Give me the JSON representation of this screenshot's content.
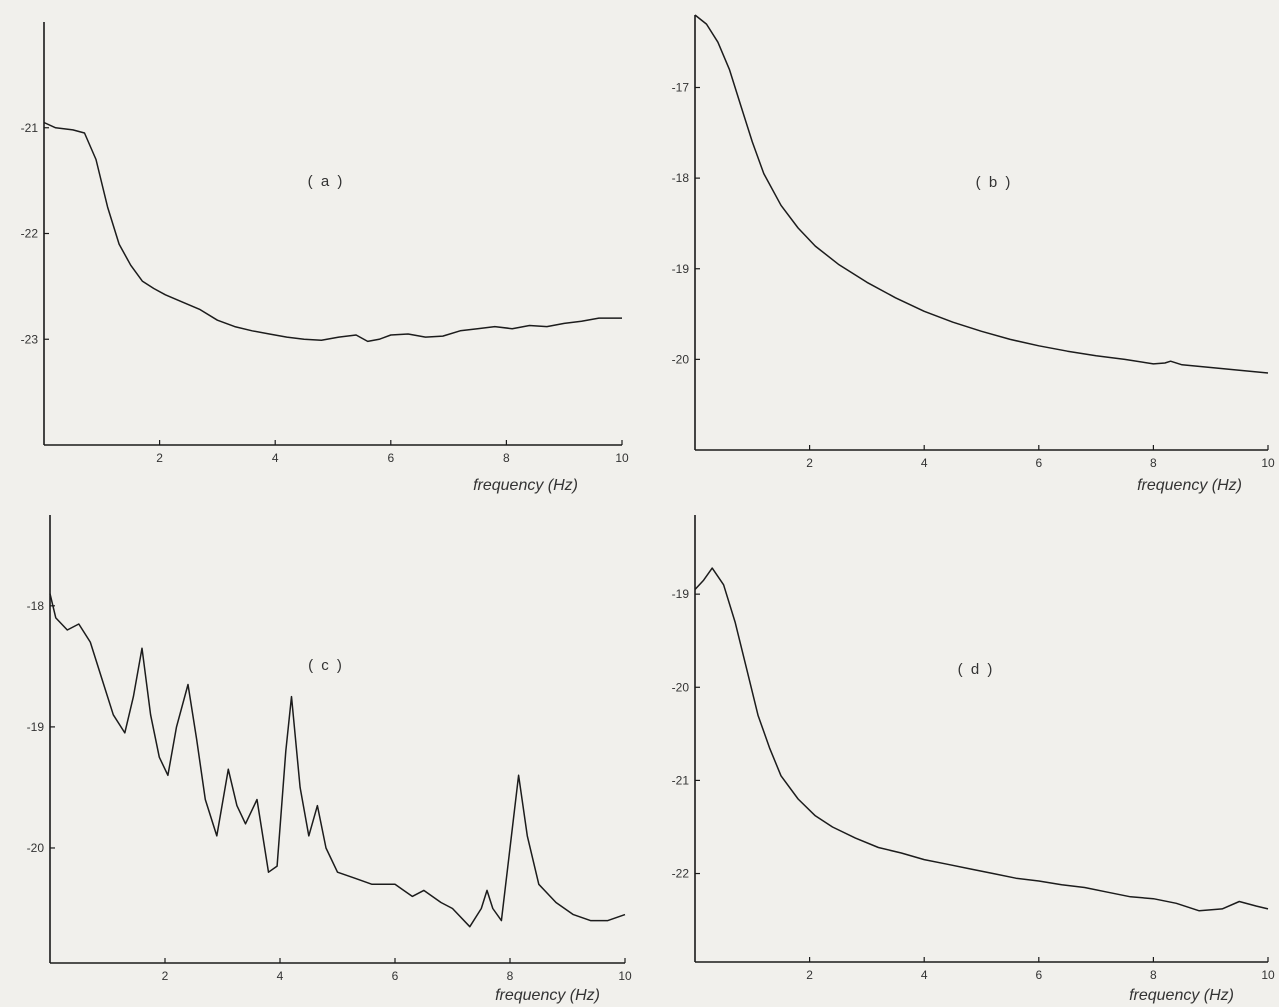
{
  "chart_data": [
    {
      "panel": "a",
      "type": "line",
      "label": "( a )",
      "xlabel": "frequency (Hz)",
      "ylabel": "",
      "xlim": [
        0,
        10
      ],
      "ylim": [
        -24,
        -20
      ],
      "xticks": [
        2,
        4,
        6,
        8,
        10
      ],
      "yticks": [
        -21,
        -22,
        -23
      ],
      "grid": false,
      "series": [
        {
          "x": [
            0.0,
            0.2,
            0.5,
            0.7,
            0.9,
            1.1,
            1.3,
            1.5,
            1.7,
            1.9,
            2.1,
            2.4,
            2.7,
            3.0,
            3.3,
            3.6,
            3.9,
            4.2,
            4.5,
            4.8,
            5.1,
            5.4,
            5.6,
            5.8,
            6.0,
            6.3,
            6.6,
            6.9,
            7.2,
            7.5,
            7.8,
            8.1,
            8.4,
            8.7,
            9.0,
            9.3,
            9.6,
            10.0
          ],
          "y": [
            -20.95,
            -21.0,
            -21.02,
            -21.05,
            -21.3,
            -21.75,
            -22.1,
            -22.3,
            -22.45,
            -22.52,
            -22.58,
            -22.65,
            -22.72,
            -22.82,
            -22.88,
            -22.92,
            -22.95,
            -22.98,
            -23.0,
            -23.01,
            -22.98,
            -22.96,
            -23.02,
            -23.0,
            -22.96,
            -22.95,
            -22.98,
            -22.97,
            -22.92,
            -22.9,
            -22.88,
            -22.9,
            -22.87,
            -22.88,
            -22.85,
            -22.83,
            -22.8,
            -22.8
          ]
        }
      ]
    },
    {
      "panel": "b",
      "type": "line",
      "label": "( b )",
      "xlabel": "frequency (Hz)",
      "ylabel": "",
      "xlim": [
        0,
        10
      ],
      "ylim": [
        -21,
        -16.2
      ],
      "xticks": [
        2,
        4,
        6,
        8,
        10
      ],
      "yticks": [
        -17,
        -18,
        -19,
        -20
      ],
      "grid": false,
      "series": [
        {
          "x": [
            0.0,
            0.2,
            0.4,
            0.6,
            0.8,
            1.0,
            1.2,
            1.5,
            1.8,
            2.1,
            2.5,
            3.0,
            3.5,
            4.0,
            4.5,
            5.0,
            5.5,
            6.0,
            6.5,
            7.0,
            7.5,
            8.0,
            8.2,
            8.3,
            8.5,
            9.0,
            9.5,
            10.0
          ],
          "y": [
            -16.2,
            -16.3,
            -16.5,
            -16.8,
            -17.2,
            -17.6,
            -17.95,
            -18.3,
            -18.55,
            -18.75,
            -18.95,
            -19.15,
            -19.32,
            -19.47,
            -19.59,
            -19.69,
            -19.78,
            -19.85,
            -19.91,
            -19.96,
            -20.0,
            -20.05,
            -20.04,
            -20.02,
            -20.06,
            -20.09,
            -20.12,
            -20.15
          ]
        }
      ]
    },
    {
      "panel": "c",
      "type": "line",
      "label": "( c )",
      "xlabel": "frequency (Hz)",
      "ylabel": "",
      "xlim": [
        0,
        10
      ],
      "ylim": [
        -20.95,
        -17.25
      ],
      "xticks": [
        2,
        4,
        6,
        8,
        10
      ],
      "yticks": [
        -18,
        -19,
        -20
      ],
      "grid": false,
      "series": [
        {
          "x": [
            0.0,
            0.1,
            0.3,
            0.5,
            0.7,
            0.9,
            1.1,
            1.3,
            1.45,
            1.6,
            1.75,
            1.9,
            2.05,
            2.2,
            2.4,
            2.55,
            2.7,
            2.9,
            3.1,
            3.25,
            3.4,
            3.6,
            3.8,
            3.95,
            4.1,
            4.2,
            4.35,
            4.5,
            4.65,
            4.8,
            5.0,
            5.3,
            5.6,
            6.0,
            6.3,
            6.5,
            6.8,
            7.0,
            7.3,
            7.5,
            7.6,
            7.7,
            7.85,
            8.0,
            8.15,
            8.3,
            8.5,
            8.8,
            9.1,
            9.4,
            9.7,
            10.0
          ],
          "y": [
            -17.9,
            -18.1,
            -18.2,
            -18.15,
            -18.3,
            -18.6,
            -18.9,
            -19.05,
            -18.75,
            -18.35,
            -18.9,
            -19.25,
            -19.4,
            -19.0,
            -18.65,
            -19.1,
            -19.6,
            -19.9,
            -19.35,
            -19.65,
            -19.8,
            -19.6,
            -20.2,
            -20.15,
            -19.2,
            -18.75,
            -19.5,
            -19.9,
            -19.65,
            -20.0,
            -20.2,
            -20.25,
            -20.3,
            -20.3,
            -20.4,
            -20.35,
            -20.45,
            -20.5,
            -20.65,
            -20.5,
            -20.35,
            -20.5,
            -20.6,
            -20.0,
            -19.4,
            -19.9,
            -20.3,
            -20.45,
            -20.55,
            -20.6,
            -20.6,
            -20.55
          ]
        }
      ]
    },
    {
      "panel": "d",
      "type": "line",
      "label": "( d )",
      "xlabel": "frequency (Hz)",
      "ylabel": "",
      "xlim": [
        0,
        10
      ],
      "ylim": [
        -22.95,
        -18.15
      ],
      "xticks": [
        2,
        4,
        6,
        8,
        10
      ],
      "yticks": [
        -19,
        -20,
        -21,
        -22
      ],
      "grid": false,
      "series": [
        {
          "x": [
            0.0,
            0.15,
            0.3,
            0.5,
            0.7,
            0.9,
            1.1,
            1.3,
            1.5,
            1.8,
            2.1,
            2.4,
            2.8,
            3.2,
            3.6,
            4.0,
            4.4,
            4.8,
            5.2,
            5.6,
            6.0,
            6.4,
            6.8,
            7.2,
            7.6,
            8.0,
            8.4,
            8.8,
            9.2,
            9.5,
            9.8,
            10.0
          ],
          "y": [
            -18.95,
            -18.85,
            -18.72,
            -18.9,
            -19.3,
            -19.8,
            -20.3,
            -20.65,
            -20.95,
            -21.2,
            -21.38,
            -21.5,
            -21.62,
            -21.72,
            -21.78,
            -21.85,
            -21.9,
            -21.95,
            -22.0,
            -22.05,
            -22.08,
            -22.12,
            -22.15,
            -22.2,
            -22.25,
            -22.27,
            -22.32,
            -22.4,
            -22.38,
            -22.3,
            -22.35,
            -22.38
          ]
        }
      ]
    }
  ]
}
